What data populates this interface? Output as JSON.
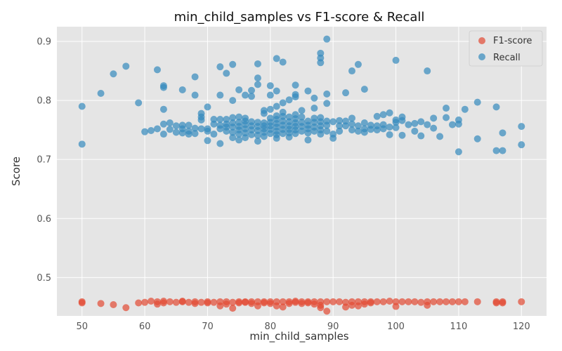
{
  "chart_data": {
    "type": "scatter",
    "title": "min_child_samples vs F1-score & Recall",
    "xlabel": "min_child_samples",
    "ylabel": "Score",
    "xlim": [
      46,
      124
    ],
    "ylim": [
      0.435,
      0.925
    ],
    "x_ticks": [
      50,
      60,
      70,
      80,
      90,
      100,
      110,
      120
    ],
    "y_ticks": [
      0.5,
      0.6,
      0.7,
      0.8,
      0.9
    ],
    "grid": true,
    "legend_position": "top-right",
    "series": [
      {
        "name": "F1-score",
        "color": "#E24A33",
        "points": [
          [
            50,
            0.459
          ],
          [
            50,
            0.457
          ],
          [
            53,
            0.456
          ],
          [
            55,
            0.454
          ],
          [
            57,
            0.449
          ],
          [
            59,
            0.457
          ],
          [
            60,
            0.458
          ],
          [
            61,
            0.46
          ],
          [
            62,
            0.455
          ],
          [
            62,
            0.459
          ],
          [
            63,
            0.457
          ],
          [
            63,
            0.46
          ],
          [
            64,
            0.459
          ],
          [
            65,
            0.458
          ],
          [
            66,
            0.459
          ],
          [
            66,
            0.46
          ],
          [
            67,
            0.458
          ],
          [
            68,
            0.456
          ],
          [
            68,
            0.459
          ],
          [
            69,
            0.458
          ],
          [
            70,
            0.459
          ],
          [
            70,
            0.457
          ],
          [
            71,
            0.458
          ],
          [
            72,
            0.452
          ],
          [
            72,
            0.459
          ],
          [
            73,
            0.455
          ],
          [
            73,
            0.459
          ],
          [
            74,
            0.448
          ],
          [
            74,
            0.458
          ],
          [
            75,
            0.459
          ],
          [
            75,
            0.457
          ],
          [
            76,
            0.459
          ],
          [
            76,
            0.458
          ],
          [
            77,
            0.456
          ],
          [
            77,
            0.459
          ],
          [
            78,
            0.452
          ],
          [
            78,
            0.459
          ],
          [
            79,
            0.457
          ],
          [
            79,
            0.459
          ],
          [
            80,
            0.456
          ],
          [
            80,
            0.459
          ],
          [
            81,
            0.452
          ],
          [
            81,
            0.459
          ],
          [
            82,
            0.45
          ],
          [
            82,
            0.459
          ],
          [
            83,
            0.459
          ],
          [
            83,
            0.456
          ],
          [
            84,
            0.458
          ],
          [
            84,
            0.46
          ],
          [
            85,
            0.459
          ],
          [
            85,
            0.456
          ],
          [
            86,
            0.459
          ],
          [
            86,
            0.457
          ],
          [
            87,
            0.459
          ],
          [
            87,
            0.455
          ],
          [
            88,
            0.449
          ],
          [
            88,
            0.453
          ],
          [
            88,
            0.459
          ],
          [
            89,
            0.443
          ],
          [
            89,
            0.459
          ],
          [
            90,
            0.459
          ],
          [
            91,
            0.459
          ],
          [
            92,
            0.45
          ],
          [
            92,
            0.458
          ],
          [
            93,
            0.453
          ],
          [
            93,
            0.459
          ],
          [
            94,
            0.452
          ],
          [
            94,
            0.459
          ],
          [
            95,
            0.455
          ],
          [
            95,
            0.459
          ],
          [
            96,
            0.459
          ],
          [
            96,
            0.457
          ],
          [
            97,
            0.459
          ],
          [
            98,
            0.459
          ],
          [
            99,
            0.46
          ],
          [
            100,
            0.451
          ],
          [
            100,
            0.459
          ],
          [
            101,
            0.459
          ],
          [
            102,
            0.459
          ],
          [
            103,
            0.459
          ],
          [
            104,
            0.458
          ],
          [
            105,
            0.453
          ],
          [
            105,
            0.459
          ],
          [
            106,
            0.459
          ],
          [
            107,
            0.459
          ],
          [
            108,
            0.459
          ],
          [
            109,
            0.459
          ],
          [
            110,
            0.459
          ],
          [
            111,
            0.459
          ],
          [
            113,
            0.459
          ],
          [
            116,
            0.459
          ],
          [
            116,
            0.457
          ],
          [
            117,
            0.459
          ],
          [
            117,
            0.457
          ],
          [
            120,
            0.459
          ]
        ]
      },
      {
        "name": "Recall",
        "color": "#348ABD",
        "points": [
          [
            50,
            0.79
          ],
          [
            50,
            0.726
          ],
          [
            53,
            0.812
          ],
          [
            55,
            0.845
          ],
          [
            57,
            0.858
          ],
          [
            59,
            0.796
          ],
          [
            60,
            0.747
          ],
          [
            61,
            0.749
          ],
          [
            62,
            0.852
          ],
          [
            62,
            0.752
          ],
          [
            63,
            0.825
          ],
          [
            63,
            0.822
          ],
          [
            63,
            0.785
          ],
          [
            63,
            0.76
          ],
          [
            63,
            0.743
          ],
          [
            64,
            0.762
          ],
          [
            64,
            0.751
          ],
          [
            65,
            0.757
          ],
          [
            65,
            0.746
          ],
          [
            66,
            0.818
          ],
          [
            66,
            0.758
          ],
          [
            66,
            0.752
          ],
          [
            66,
            0.745
          ],
          [
            67,
            0.758
          ],
          [
            67,
            0.748
          ],
          [
            67,
            0.743
          ],
          [
            68,
            0.84
          ],
          [
            68,
            0.809
          ],
          [
            68,
            0.753
          ],
          [
            68,
            0.744
          ],
          [
            69,
            0.778
          ],
          [
            69,
            0.772
          ],
          [
            69,
            0.767
          ],
          [
            69,
            0.752
          ],
          [
            70,
            0.789
          ],
          [
            70,
            0.752
          ],
          [
            70,
            0.748
          ],
          [
            70,
            0.732
          ],
          [
            71,
            0.768
          ],
          [
            71,
            0.76
          ],
          [
            71,
            0.743
          ],
          [
            72,
            0.857
          ],
          [
            72,
            0.809
          ],
          [
            72,
            0.768
          ],
          [
            72,
            0.758
          ],
          [
            72,
            0.752
          ],
          [
            72,
            0.727
          ],
          [
            73,
            0.846
          ],
          [
            73,
            0.768
          ],
          [
            73,
            0.76
          ],
          [
            73,
            0.755
          ],
          [
            73,
            0.748
          ],
          [
            74,
            0.861
          ],
          [
            74,
            0.8
          ],
          [
            74,
            0.771
          ],
          [
            74,
            0.762
          ],
          [
            74,
            0.755
          ],
          [
            74,
            0.746
          ],
          [
            74,
            0.737
          ],
          [
            75,
            0.818
          ],
          [
            75,
            0.772
          ],
          [
            75,
            0.763
          ],
          [
            75,
            0.756
          ],
          [
            75,
            0.75
          ],
          [
            75,
            0.743
          ],
          [
            75,
            0.733
          ],
          [
            76,
            0.809
          ],
          [
            76,
            0.77
          ],
          [
            76,
            0.765
          ],
          [
            76,
            0.759
          ],
          [
            76,
            0.752
          ],
          [
            76,
            0.745
          ],
          [
            76,
            0.737
          ],
          [
            77,
            0.817
          ],
          [
            77,
            0.807
          ],
          [
            77,
            0.764
          ],
          [
            77,
            0.757
          ],
          [
            77,
            0.75
          ],
          [
            77,
            0.742
          ],
          [
            78,
            0.862
          ],
          [
            78,
            0.838
          ],
          [
            78,
            0.827
          ],
          [
            78,
            0.763
          ],
          [
            78,
            0.756
          ],
          [
            78,
            0.749
          ],
          [
            78,
            0.741
          ],
          [
            78,
            0.731
          ],
          [
            79,
            0.783
          ],
          [
            79,
            0.778
          ],
          [
            79,
            0.762
          ],
          [
            79,
            0.757
          ],
          [
            79,
            0.752
          ],
          [
            79,
            0.746
          ],
          [
            79,
            0.739
          ],
          [
            80,
            0.825
          ],
          [
            80,
            0.809
          ],
          [
            80,
            0.785
          ],
          [
            80,
            0.77
          ],
          [
            80,
            0.763
          ],
          [
            80,
            0.757
          ],
          [
            80,
            0.751
          ],
          [
            80,
            0.744
          ],
          [
            81,
            0.871
          ],
          [
            81,
            0.816
          ],
          [
            81,
            0.79
          ],
          [
            81,
            0.774
          ],
          [
            81,
            0.768
          ],
          [
            81,
            0.761
          ],
          [
            81,
            0.755
          ],
          [
            81,
            0.748
          ],
          [
            81,
            0.742
          ],
          [
            81,
            0.736
          ],
          [
            82,
            0.865
          ],
          [
            82,
            0.796
          ],
          [
            82,
            0.78
          ],
          [
            82,
            0.773
          ],
          [
            82,
            0.765
          ],
          [
            82,
            0.758
          ],
          [
            82,
            0.751
          ],
          [
            82,
            0.744
          ],
          [
            83,
            0.801
          ],
          [
            83,
            0.772
          ],
          [
            83,
            0.764
          ],
          [
            83,
            0.757
          ],
          [
            83,
            0.751
          ],
          [
            83,
            0.745
          ],
          [
            83,
            0.738
          ],
          [
            84,
            0.826
          ],
          [
            84,
            0.81
          ],
          [
            84,
            0.806
          ],
          [
            84,
            0.776
          ],
          [
            84,
            0.769
          ],
          [
            84,
            0.762
          ],
          [
            84,
            0.756
          ],
          [
            84,
            0.75
          ],
          [
            84,
            0.744
          ],
          [
            85,
            0.783
          ],
          [
            85,
            0.772
          ],
          [
            85,
            0.763
          ],
          [
            85,
            0.756
          ],
          [
            85,
            0.748
          ],
          [
            86,
            0.816
          ],
          [
            86,
            0.765
          ],
          [
            86,
            0.758
          ],
          [
            86,
            0.752
          ],
          [
            86,
            0.745
          ],
          [
            86,
            0.733
          ],
          [
            87,
            0.804
          ],
          [
            87,
            0.787
          ],
          [
            87,
            0.77
          ],
          [
            87,
            0.763
          ],
          [
            87,
            0.755
          ],
          [
            87,
            0.748
          ],
          [
            88,
            0.88
          ],
          [
            88,
            0.872
          ],
          [
            88,
            0.864
          ],
          [
            88,
            0.771
          ],
          [
            88,
            0.764
          ],
          [
            88,
            0.757
          ],
          [
            88,
            0.75
          ],
          [
            88,
            0.743
          ],
          [
            89,
            0.904
          ],
          [
            89,
            0.811
          ],
          [
            89,
            0.795
          ],
          [
            89,
            0.765
          ],
          [
            89,
            0.758
          ],
          [
            89,
            0.748
          ],
          [
            90,
            0.764
          ],
          [
            90,
            0.743
          ],
          [
            90,
            0.736
          ],
          [
            91,
            0.766
          ],
          [
            91,
            0.757
          ],
          [
            91,
            0.748
          ],
          [
            92,
            0.813
          ],
          [
            92,
            0.765
          ],
          [
            92,
            0.757
          ],
          [
            93,
            0.85
          ],
          [
            93,
            0.77
          ],
          [
            93,
            0.76
          ],
          [
            93,
            0.75
          ],
          [
            94,
            0.861
          ],
          [
            94,
            0.757
          ],
          [
            94,
            0.748
          ],
          [
            95,
            0.819
          ],
          [
            95,
            0.762
          ],
          [
            95,
            0.752
          ],
          [
            95,
            0.746
          ],
          [
            96,
            0.758
          ],
          [
            96,
            0.751
          ],
          [
            97,
            0.773
          ],
          [
            97,
            0.757
          ],
          [
            97,
            0.75
          ],
          [
            98,
            0.776
          ],
          [
            98,
            0.759
          ],
          [
            98,
            0.752
          ],
          [
            99,
            0.779
          ],
          [
            99,
            0.755
          ],
          [
            99,
            0.742
          ],
          [
            100,
            0.868
          ],
          [
            100,
            0.767
          ],
          [
            100,
            0.763
          ],
          [
            100,
            0.754
          ],
          [
            101,
            0.772
          ],
          [
            101,
            0.766
          ],
          [
            101,
            0.741
          ],
          [
            102,
            0.759
          ],
          [
            103,
            0.761
          ],
          [
            103,
            0.748
          ],
          [
            104,
            0.764
          ],
          [
            104,
            0.74
          ],
          [
            105,
            0.85
          ],
          [
            105,
            0.759
          ],
          [
            106,
            0.77
          ],
          [
            106,
            0.753
          ],
          [
            107,
            0.739
          ],
          [
            108,
            0.787
          ],
          [
            108,
            0.771
          ],
          [
            109,
            0.759
          ],
          [
            110,
            0.767
          ],
          [
            110,
            0.76
          ],
          [
            110,
            0.713
          ],
          [
            111,
            0.785
          ],
          [
            113,
            0.797
          ],
          [
            113,
            0.735
          ],
          [
            116,
            0.789
          ],
          [
            116,
            0.715
          ],
          [
            117,
            0.745
          ],
          [
            117,
            0.715
          ],
          [
            120,
            0.756
          ],
          [
            120,
            0.725
          ]
        ]
      }
    ]
  }
}
